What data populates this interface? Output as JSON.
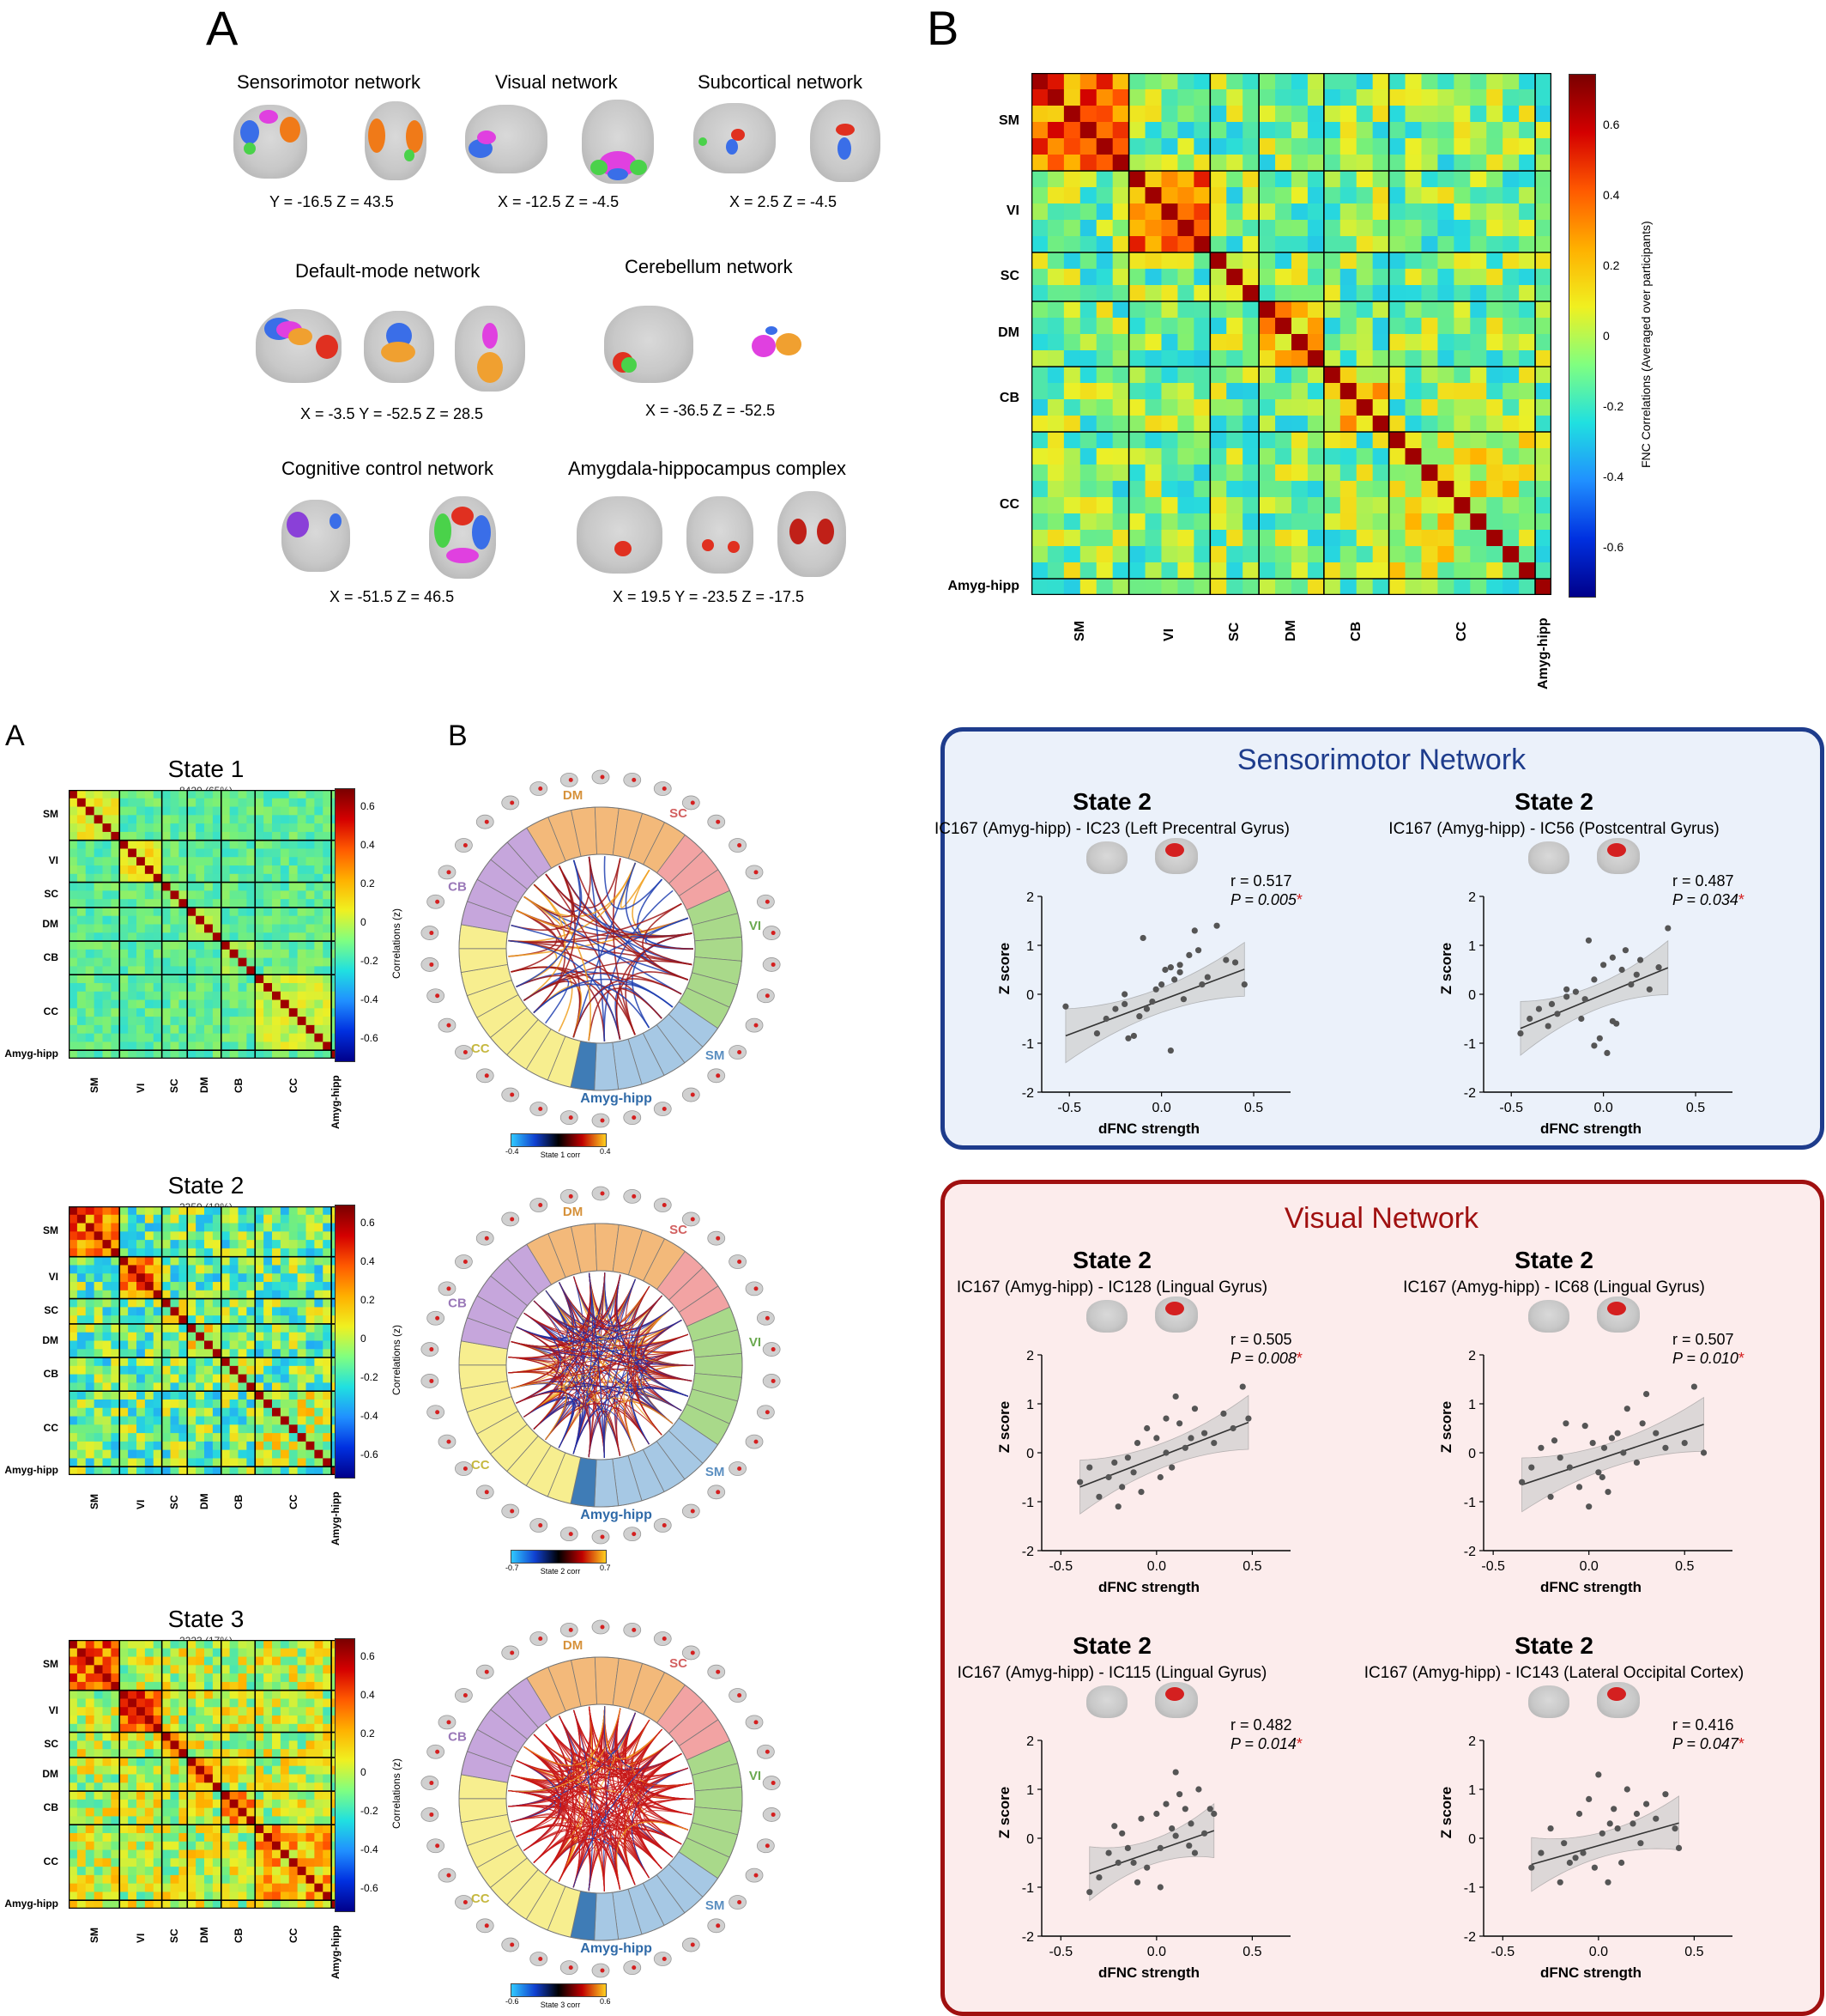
{
  "figure1": {
    "panel_a_letter": "A",
    "panel_b_letter": "B",
    "networks": [
      {
        "name": "Sensorimotor network",
        "coords": "Y = -16.5   Z = 43.5"
      },
      {
        "name": "Visual network",
        "coords": "X = -12.5  Z = -4.5"
      },
      {
        "name": "Subcortical network",
        "coords": "X = 2.5  Z = -4.5"
      },
      {
        "name": "Default-mode network",
        "coords": "X = -3.5  Y = -52.5  Z = 28.5"
      },
      {
        "name": "Cerebellum network",
        "coords": "X = -36.5  Z = -52.5"
      },
      {
        "name": "Cognitive control network",
        "coords": "X = -51.5  Z = 46.5"
      },
      {
        "name": "Amygdala-hippocampus complex",
        "coords": "X = 19.5  Y = -23.5  Z = -17.5"
      }
    ],
    "fnc_matrix": {
      "row_labels": [
        "SM",
        "VI",
        "SC",
        "DM",
        "CB",
        "CC",
        "Amyg-hipp"
      ],
      "col_labels": [
        "SM",
        "VI",
        "SC",
        "DM",
        "CB",
        "CC",
        "Amyg-hipp"
      ],
      "colorbar_ticks": [
        "0.6",
        "0.4",
        "0.2",
        "0",
        "-0.2",
        "-0.4",
        "-0.6"
      ],
      "colorbar_label": "FNC Correlations (Averaged over participants)"
    }
  },
  "figure2": {
    "panel_a_letter": "A",
    "panel_b_letter": "B",
    "states": [
      {
        "title": "State 1",
        "count": "8420 (65%)",
        "colorbar_label": "Correlations (z)",
        "chord_label": "State 1 corr",
        "chord_min": "-0.4",
        "chord_max": "0.4"
      },
      {
        "title": "State 2",
        "count": "2359 (18%)",
        "colorbar_label": "Correlations (z)",
        "chord_label": "State 2 corr",
        "chord_min": "-0.7",
        "chord_max": "0.7"
      },
      {
        "title": "State 3",
        "count": "2223 (17%)",
        "colorbar_label": "Correlations (z)",
        "chord_label": "State 3 corr",
        "chord_min": "-0.6",
        "chord_max": "0.6"
      }
    ],
    "matrix_row_labels": [
      "SM",
      "VI",
      "SC",
      "DM",
      "CB",
      "CC",
      "Amyg-hipp"
    ],
    "matrix_col_labels": [
      "SM",
      "VI",
      "SC",
      "DM",
      "CB",
      "CC",
      "Amyg-hipp"
    ],
    "colorbar_ticks": [
      "0.6",
      "0.4",
      "0.2",
      "0",
      "-0.2",
      "-0.4",
      "-0.6"
    ],
    "chord_groups": [
      "DM",
      "SC",
      "VI",
      "SM",
      "Amyg-hipp",
      "CC",
      "CB"
    ]
  },
  "sensorimotor_box": {
    "title": "Sensorimotor Network",
    "plots": [
      {
        "state": "State 2",
        "subtitle": "IC167 (Amyg-hipp) - IC23 (Left Precentral Gyrus)",
        "r": "r = 0.517",
        "p_text": "P = 0.005",
        "star": "*"
      },
      {
        "state": "State 2",
        "subtitle": "IC167 (Amyg-hipp) - IC56 (Postcentral Gyrus)",
        "r": "r = 0.487",
        "p_text": "P = 0.034",
        "star": "*"
      }
    ]
  },
  "visual_box": {
    "title": "Visual Network",
    "plots": [
      {
        "state": "State 2",
        "subtitle": "IC167 (Amyg-hipp) - IC128 (Lingual Gyrus)",
        "r": "r = 0.505",
        "p_text": "P = 0.008",
        "star": "*"
      },
      {
        "state": "State 2",
        "subtitle": "IC167 (Amyg-hipp) - IC68 (Lingual Gyrus)",
        "r": "r = 0.507",
        "p_text": "P = 0.010",
        "star": "*"
      },
      {
        "state": "State 2",
        "subtitle": "IC167 (Amyg-hipp) - IC115 (Lingual Gyrus)",
        "r": "r = 0.482",
        "p_text": "P = 0.014",
        "star": "*"
      },
      {
        "state": "State 2",
        "subtitle": "IC167 (Amyg-hipp) - IC143 (Lateral Occipital Cortex)",
        "r": "r = 0.416",
        "p_text": "P = 0.047",
        "star": "*"
      }
    ]
  },
  "scatter_axes": {
    "xlabel": "dFNC strength",
    "ylabel": "Z score",
    "yticks": [
      "2",
      "1",
      "0",
      "-1",
      "-2"
    ],
    "xticks": [
      "-0.5",
      "0.0",
      "0.5"
    ]
  },
  "chart_data": [
    {
      "type": "scatter",
      "title": "IC167 (Amyg-hipp) - IC23 (Left Precentral Gyrus)",
      "xlabel": "dFNC strength",
      "ylabel": "Z score",
      "xlim": [
        -0.65,
        0.7
      ],
      "ylim": [
        -2,
        2
      ],
      "fit": {
        "slope": 1.4,
        "intercept": -0.12
      },
      "x": [
        -0.52,
        -0.35,
        -0.3,
        -0.25,
        -0.2,
        -0.18,
        -0.15,
        -0.12,
        -0.1,
        -0.08,
        -0.05,
        -0.03,
        0.0,
        0.02,
        0.05,
        0.07,
        0.1,
        0.12,
        0.15,
        0.18,
        0.2,
        0.22,
        0.25,
        0.3,
        0.35,
        0.4,
        0.45,
        -0.2,
        0.05,
        0.1
      ],
      "y": [
        -0.25,
        -0.8,
        -0.5,
        -0.3,
        -0.2,
        -0.9,
        -0.85,
        -0.45,
        1.15,
        -0.3,
        -0.15,
        0.1,
        0.2,
        0.5,
        0.55,
        0.3,
        0.6,
        -0.1,
        0.8,
        1.3,
        0.9,
        0.2,
        0.35,
        1.4,
        0.7,
        0.65,
        0.2,
        0.0,
        -1.15,
        0.45
      ]
    },
    {
      "type": "scatter",
      "title": "IC167 (Amyg-hipp) - IC56 (Postcentral Gyrus)",
      "xlabel": "dFNC strength",
      "ylabel": "Z score",
      "xlim": [
        -0.65,
        0.7
      ],
      "ylim": [
        -2,
        2
      ],
      "fit": {
        "slope": 1.55,
        "intercept": 0.0
      },
      "x": [
        -0.45,
        -0.4,
        -0.35,
        -0.3,
        -0.28,
        -0.25,
        -0.2,
        -0.15,
        -0.12,
        -0.1,
        -0.08,
        -0.05,
        -0.02,
        0.0,
        0.02,
        0.05,
        0.07,
        0.1,
        0.12,
        0.15,
        0.18,
        0.2,
        0.25,
        0.3,
        0.35,
        -0.2,
        -0.05,
        0.05
      ],
      "y": [
        -0.8,
        -0.5,
        -0.3,
        -0.65,
        -0.2,
        -0.4,
        0.1,
        0.05,
        -0.5,
        -0.1,
        1.1,
        0.3,
        -0.9,
        0.6,
        -1.2,
        0.75,
        -0.6,
        0.5,
        0.9,
        0.2,
        0.4,
        0.7,
        0.1,
        0.55,
        1.35,
        -0.05,
        -1.05,
        -0.55
      ]
    },
    {
      "type": "scatter",
      "title": "IC167 (Amyg-hipp) - IC128 (Lingual Gyrus)",
      "xlabel": "dFNC strength",
      "ylabel": "Z score",
      "xlim": [
        -0.6,
        0.7
      ],
      "ylim": [
        -2,
        2
      ],
      "fit": {
        "slope": 1.5,
        "intercept": -0.1
      },
      "x": [
        -0.4,
        -0.35,
        -0.3,
        -0.25,
        -0.22,
        -0.2,
        -0.18,
        -0.15,
        -0.1,
        -0.08,
        -0.05,
        0.0,
        0.02,
        0.05,
        0.08,
        0.1,
        0.12,
        0.15,
        0.2,
        0.25,
        0.3,
        0.35,
        0.4,
        0.45,
        0.48,
        -0.12,
        0.05,
        0.18
      ],
      "y": [
        -0.6,
        -0.3,
        -0.9,
        -0.5,
        -0.2,
        -1.1,
        -0.7,
        -0.1,
        0.2,
        -0.8,
        0.5,
        0.3,
        -0.5,
        0.7,
        -0.3,
        1.15,
        0.6,
        0.1,
        0.9,
        0.4,
        0.2,
        0.8,
        0.5,
        1.35,
        0.7,
        -0.4,
        0.0,
        0.3
      ]
    },
    {
      "type": "scatter",
      "title": "IC167 (Amyg-hipp) - IC68 (Lingual Gyrus)",
      "xlabel": "dFNC strength",
      "ylabel": "Z score",
      "xlim": [
        -0.55,
        0.75
      ],
      "ylim": [
        -2,
        2
      ],
      "fit": {
        "slope": 1.3,
        "intercept": -0.2
      },
      "x": [
        -0.35,
        -0.3,
        -0.25,
        -0.2,
        -0.15,
        -0.12,
        -0.1,
        -0.05,
        -0.02,
        0.0,
        0.02,
        0.05,
        0.08,
        0.1,
        0.12,
        0.15,
        0.18,
        0.2,
        0.25,
        0.28,
        0.3,
        0.35,
        0.4,
        0.5,
        0.55,
        0.6,
        -0.18,
        0.07
      ],
      "y": [
        -0.6,
        -0.3,
        0.1,
        -0.9,
        -0.1,
        0.6,
        -0.3,
        -0.7,
        0.55,
        -1.1,
        0.2,
        -0.4,
        0.1,
        -0.8,
        0.3,
        0.4,
        0.0,
        0.9,
        -0.2,
        0.6,
        1.2,
        0.4,
        0.1,
        0.2,
        1.35,
        0.0,
        0.25,
        -0.5
      ]
    },
    {
      "type": "scatter",
      "title": "IC167 (Amyg-hipp) - IC115 (Lingual Gyrus)",
      "xlabel": "dFNC strength",
      "ylabel": "Z score",
      "xlim": [
        -0.6,
        0.7
      ],
      "ylim": [
        -2,
        2
      ],
      "fit": {
        "slope": 1.35,
        "intercept": -0.25
      },
      "x": [
        -0.35,
        -0.3,
        -0.25,
        -0.2,
        -0.18,
        -0.15,
        -0.1,
        -0.08,
        -0.05,
        0.0,
        0.02,
        0.05,
        0.08,
        0.1,
        0.12,
        0.15,
        0.18,
        0.2,
        0.22,
        0.25,
        0.28,
        0.3,
        -0.12,
        0.02,
        0.1,
        0.17,
        -0.22
      ],
      "y": [
        -1.1,
        -0.8,
        -0.3,
        -0.5,
        0.1,
        -0.2,
        -0.9,
        0.4,
        -0.6,
        0.5,
        -0.2,
        0.7,
        0.2,
        1.35,
        0.9,
        0.6,
        0.3,
        -0.3,
        1.0,
        0.1,
        0.6,
        0.5,
        -0.5,
        -1.0,
        0.05,
        -0.15,
        0.25
      ]
    },
    {
      "type": "scatter",
      "title": "IC167 (Amyg-hipp) - IC143 (Lateral Occipital Cortex)",
      "xlabel": "dFNC strength",
      "ylabel": "Z score",
      "xlim": [
        -0.6,
        0.7
      ],
      "ylim": [
        -2,
        2
      ],
      "fit": {
        "slope": 1.1,
        "intercept": -0.15
      },
      "x": [
        -0.35,
        -0.3,
        -0.25,
        -0.2,
        -0.18,
        -0.15,
        -0.1,
        -0.08,
        -0.05,
        -0.02,
        0.0,
        0.02,
        0.05,
        0.08,
        0.1,
        0.12,
        0.15,
        0.18,
        0.2,
        0.25,
        0.3,
        0.35,
        0.4,
        0.42,
        -0.12,
        0.06,
        0.22
      ],
      "y": [
        -0.6,
        -0.3,
        0.2,
        -0.9,
        -0.1,
        -0.5,
        0.5,
        -0.3,
        0.8,
        -0.6,
        1.3,
        0.1,
        -0.9,
        0.6,
        0.2,
        -0.5,
        1.0,
        0.3,
        0.5,
        0.7,
        0.4,
        0.9,
        0.2,
        -0.2,
        -0.4,
        0.3,
        -0.1
      ]
    }
  ]
}
